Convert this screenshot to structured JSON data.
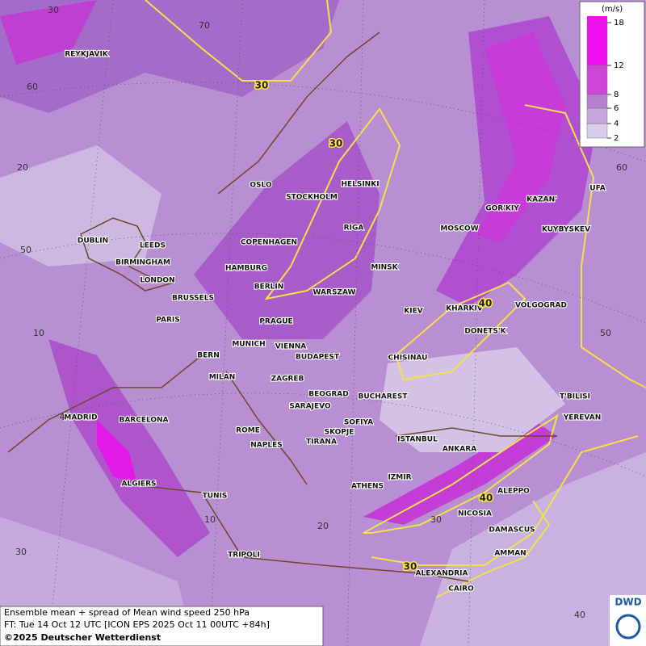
{
  "cities": [
    "REYKJAVIK",
    "OSLO",
    "STOCKHOLM",
    "HELSINKI",
    "RIGA",
    "MOSCOW",
    "GOR'KIY",
    "KAZAN'",
    "UFA",
    "KUYBYSKEV",
    "DUBLIN",
    "LEEDS",
    "BIRMINGHAM",
    "LONDON",
    "COPENHAGEN",
    "HAMBURG",
    "BERLIN",
    "MINSK",
    "WARSZAW",
    "BRUSSELS",
    "KIEV",
    "KHARKIV",
    "VOLGOGRAD",
    "PARIS",
    "PRAGUE",
    "DONETS'K",
    "MUNICH",
    "VIENNA",
    "BERN",
    "BUDAPEST",
    "CHISINAU",
    "MILAN",
    "ZAGREB",
    "BEOGRAD",
    "BUCHAREST",
    "T'BILISI",
    "SARAJEVO",
    "MADRID",
    "BARCELONA",
    "SOFIYA",
    "YEREVAN",
    "ROME",
    "SKOPJE",
    "NAPLES",
    "TIRANA",
    "ISTANBUL",
    "ANKARA",
    "IZMIR",
    "ALGIERS",
    "ATHENS",
    "ALEPPO",
    "TUNIS",
    "NICOSIA",
    "DAMASCUS",
    "AMMAN",
    "TRIPOLI",
    "ALEXANDRIA",
    "CAIRO"
  ],
  "graticule_labels": [
    "30",
    "70",
    "60",
    "20",
    "50",
    "10",
    "4",
    "10",
    "20",
    "30",
    "40",
    "30",
    "60",
    "50"
  ],
  "contour_labels": [
    "30",
    "30",
    "40",
    "40",
    "30"
  ],
  "legend": {
    "unit": "(m/s)",
    "ticks": [
      2,
      4,
      6,
      8,
      12,
      18
    ],
    "colors": [
      "#d9cde8",
      "#c7a6dc",
      "#b67fd0",
      "#cf45d9",
      "#ee10ee"
    ]
  },
  "footer": {
    "line1": "Ensemble mean + spread of Mean wind speed 250 hPa",
    "line2": "FT: Tue 14 Oct 12 UTC [ICON EPS 2025 Oct 11 00UTC +84h]",
    "line3": "©2025 Deutscher Wetterdienst"
  },
  "logo": "DWD"
}
